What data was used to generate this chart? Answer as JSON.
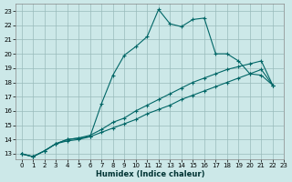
{
  "xlabel": "Humidex (Indice chaleur)",
  "bg_color": "#cce8e8",
  "grid_color": "#99bbbb",
  "line_color": "#006666",
  "xlim": [
    -0.5,
    23
  ],
  "ylim": [
    12.6,
    23.5
  ],
  "yticks": [
    13,
    14,
    15,
    16,
    17,
    18,
    19,
    20,
    21,
    22,
    23
  ],
  "xticks": [
    0,
    1,
    2,
    3,
    4,
    5,
    6,
    7,
    8,
    9,
    10,
    11,
    12,
    13,
    14,
    15,
    16,
    17,
    18,
    19,
    20,
    21,
    22,
    23
  ],
  "series1_x": [
    0,
    1,
    2,
    3,
    4,
    5,
    6,
    7,
    8,
    9,
    10,
    11,
    12,
    13,
    14,
    15,
    16,
    17,
    18,
    19,
    20,
    21,
    22
  ],
  "series1_y": [
    13,
    12.8,
    13.2,
    13.7,
    13.9,
    14.0,
    14.2,
    16.5,
    18.5,
    19.9,
    20.5,
    21.2,
    23.1,
    22.1,
    21.9,
    22.4,
    22.5,
    20.0,
    20.0,
    19.5,
    18.6,
    18.5,
    17.8
  ],
  "series2_x": [
    0,
    1,
    2,
    3,
    4,
    5,
    6,
    7,
    8,
    9,
    10,
    11,
    12,
    13,
    14,
    15,
    16,
    17,
    18,
    19,
    20,
    21,
    22
  ],
  "series2_y": [
    13,
    12.8,
    13.2,
    13.7,
    14.0,
    14.1,
    14.2,
    14.5,
    14.8,
    15.1,
    15.4,
    15.8,
    16.1,
    16.4,
    16.8,
    17.1,
    17.4,
    17.7,
    18.0,
    18.3,
    18.6,
    18.9,
    17.8
  ],
  "series3_x": [
    0,
    1,
    2,
    3,
    4,
    5,
    6,
    7,
    8,
    9,
    10,
    11,
    12,
    13,
    14,
    15,
    16,
    17,
    18,
    19,
    20,
    21,
    22
  ],
  "series3_y": [
    13,
    12.8,
    13.2,
    13.7,
    14.0,
    14.1,
    14.3,
    14.7,
    15.2,
    15.5,
    16.0,
    16.4,
    16.8,
    17.2,
    17.6,
    18.0,
    18.3,
    18.6,
    18.9,
    19.1,
    19.3,
    19.5,
    17.8
  ]
}
